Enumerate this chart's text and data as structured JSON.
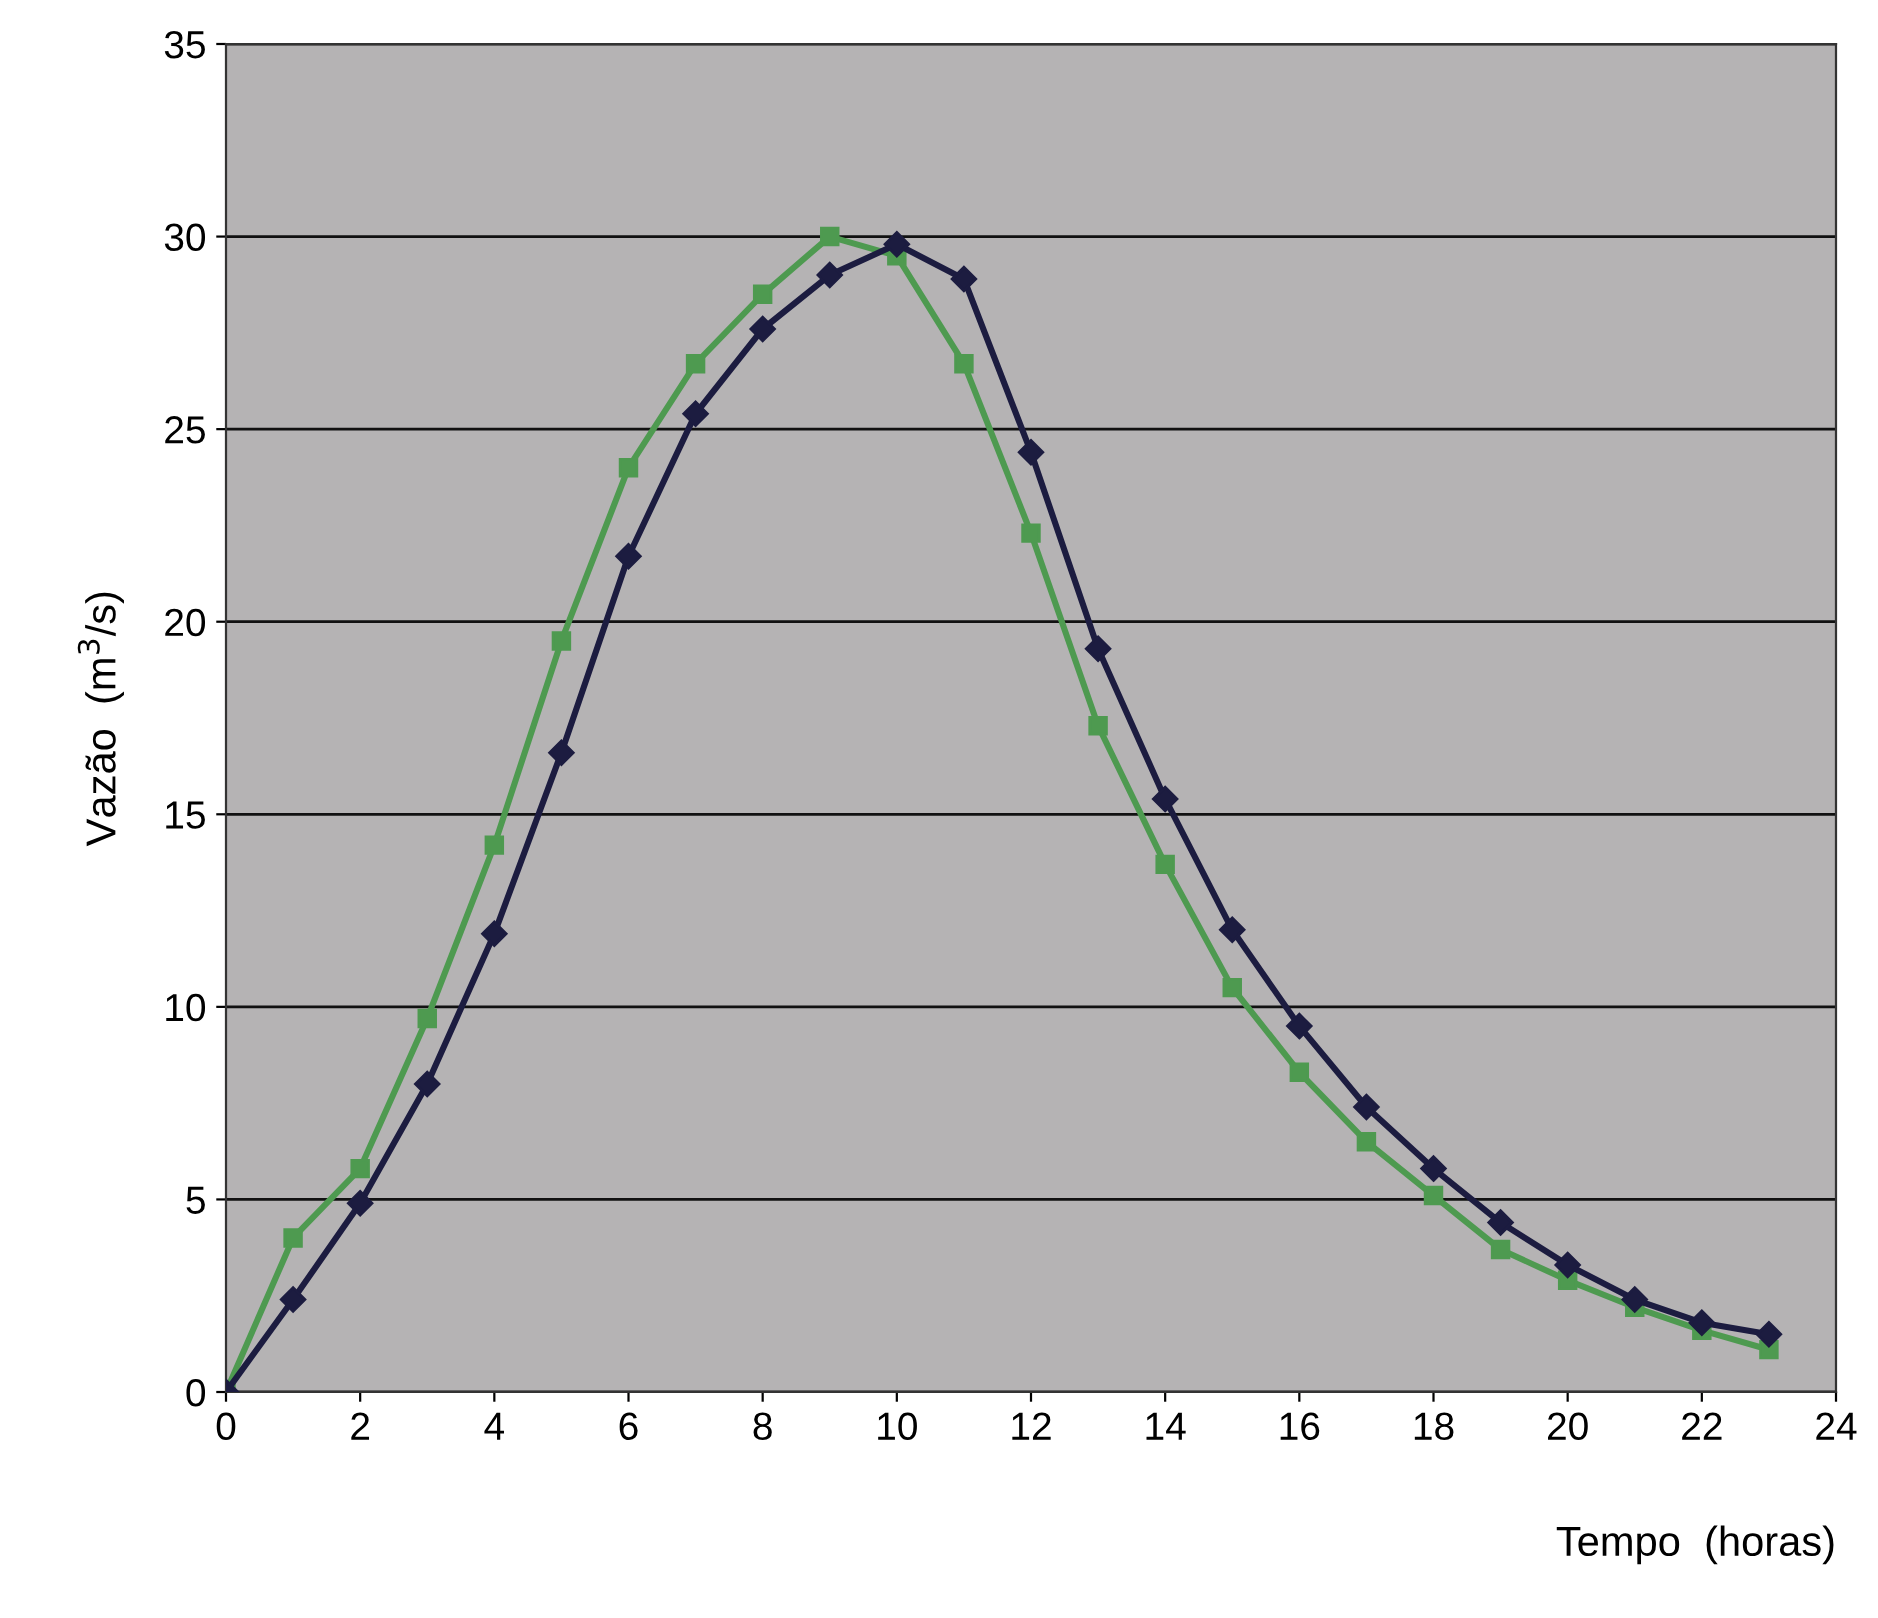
{
  "chart_data": {
    "type": "line",
    "xlabel": "Tempo  (horas)",
    "ylabel": "Vazão  (m$^{3}$/s)",
    "x": [
      0,
      1,
      2,
      3,
      4,
      5,
      6,
      7,
      8,
      9,
      10,
      11,
      12,
      13,
      14,
      15,
      16,
      17,
      18,
      19,
      20,
      21,
      22,
      23
    ],
    "series": [
      {
        "color": "#1c1c40",
        "marker": "diamond",
        "values": [
          0,
          2.4,
          4.9,
          8.0,
          11.9,
          16.6,
          21.7,
          25.4,
          27.6,
          29.0,
          29.8,
          28.9,
          24.4,
          19.3,
          15.4,
          12.0,
          9.5,
          7.4,
          5.8,
          4.4,
          3.3,
          2.4,
          1.8,
          1.5
        ]
      },
      {
        "color": "#4e9a50",
        "marker": "square",
        "values": [
          0,
          4.0,
          5.8,
          9.7,
          14.2,
          19.5,
          24.0,
          26.7,
          28.5,
          30.0,
          29.5,
          26.7,
          22.3,
          17.3,
          13.7,
          10.5,
          8.3,
          6.5,
          5.1,
          3.7,
          2.9,
          2.2,
          1.6,
          1.1
        ]
      }
    ],
    "xlim": [
      0,
      24
    ],
    "xticks": [
      0,
      2,
      4,
      6,
      8,
      10,
      12,
      14,
      16,
      18,
      20,
      22,
      24
    ],
    "ylim": [
      0,
      35
    ],
    "yticks": [
      0,
      5,
      10,
      15,
      20,
      25,
      30,
      35
    ],
    "grid": "y",
    "legend": false,
    "line_style": "solid"
  }
}
